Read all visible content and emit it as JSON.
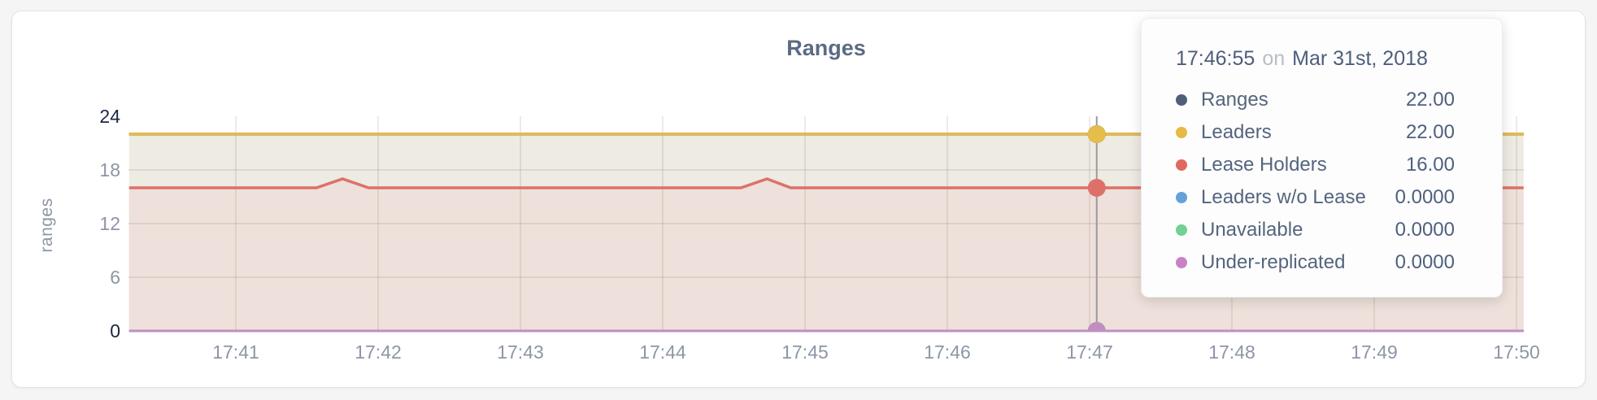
{
  "chart_data": {
    "type": "area",
    "title": "Ranges",
    "ylabel": "ranges",
    "ylim": [
      0,
      24
    ],
    "grid": true,
    "t_start": "17:40:15",
    "t_end": "17:50:03",
    "x_ticks": [
      {
        "label": "17:41",
        "time": "17:41:00"
      },
      {
        "label": "17:42",
        "time": "17:42:00"
      },
      {
        "label": "17:43",
        "time": "17:43:00"
      },
      {
        "label": "17:44",
        "time": "17:44:00"
      },
      {
        "label": "17:45",
        "time": "17:45:00"
      },
      {
        "label": "17:46",
        "time": "17:46:00"
      },
      {
        "label": "17:47",
        "time": "17:47:00"
      },
      {
        "label": "17:48",
        "time": "17:48:00"
      },
      {
        "label": "17:49",
        "time": "17:49:00"
      },
      {
        "label": "17:50",
        "time": "17:50:00"
      }
    ],
    "y_ticks": [
      {
        "label": "0",
        "value": 0,
        "emphasis": true,
        "grid": false
      },
      {
        "label": "6",
        "value": 6,
        "emphasis": false,
        "grid": true
      },
      {
        "label": "12",
        "value": 12,
        "emphasis": false,
        "grid": true
      },
      {
        "label": "18",
        "value": 18,
        "emphasis": false,
        "grid": true
      },
      {
        "label": "24",
        "value": 24,
        "emphasis": true,
        "grid": false
      }
    ],
    "series": [
      {
        "id": "ranges",
        "name": "Ranges",
        "color": "#4f5e7b",
        "width": 3.5,
        "points": [
          [
            "17:40:15",
            22
          ],
          [
            "17:50:03",
            22
          ]
        ]
      },
      {
        "id": "leaders",
        "name": "Leaders",
        "color": "#e6bc4b",
        "fill": "#edebe2",
        "width": 3.5,
        "points": [
          [
            "17:40:15",
            22
          ],
          [
            "17:50:03",
            22
          ]
        ]
      },
      {
        "id": "lease-holders",
        "name": "Lease Holders",
        "color": "#dd7169",
        "fill": "#eee0da",
        "width": 3.5,
        "points": [
          [
            "17:40:15",
            16
          ],
          [
            "17:41:34",
            16
          ],
          [
            "17:41:45",
            17
          ],
          [
            "17:41:56",
            16
          ],
          [
            "17:44:33",
            16
          ],
          [
            "17:44:44",
            17
          ],
          [
            "17:44:54",
            16
          ],
          [
            "17:50:03",
            16
          ]
        ]
      },
      {
        "id": "leaders-wo-lease",
        "name": "Leaders w/o Lease",
        "color": "#64a1da",
        "width": 3,
        "points": [
          [
            "17:40:15",
            0
          ],
          [
            "17:50:03",
            0
          ]
        ]
      },
      {
        "id": "unavailable",
        "name": "Unavailable",
        "color": "#72d093",
        "width": 3,
        "points": [
          [
            "17:40:15",
            0
          ],
          [
            "17:50:03",
            0
          ]
        ]
      },
      {
        "id": "under-replicated",
        "name": "Under-replicated",
        "color": "#c08fc2",
        "width": 3,
        "points": [
          [
            "17:40:15",
            0
          ],
          [
            "17:50:03",
            0
          ]
        ]
      }
    ],
    "hover": {
      "guideline_time": "17:47:03",
      "values": [
        22,
        22,
        16,
        0,
        0,
        0
      ]
    }
  },
  "tooltip": {
    "time": "17:46:55",
    "on_word": "on",
    "date": "Mar 31st, 2018",
    "rows": [
      {
        "label": "Ranges",
        "value": "22.00",
        "color": "#4f5e7b"
      },
      {
        "label": "Leaders",
        "value": "22.00",
        "color": "#e8b945"
      },
      {
        "label": "Lease Holders",
        "value": "16.00",
        "color": "#e0695f"
      },
      {
        "label": "Leaders w/o Lease",
        "value": "0.0000",
        "color": "#64a1da"
      },
      {
        "label": "Unavailable",
        "value": "0.0000",
        "color": "#72d093"
      },
      {
        "label": "Under-replicated",
        "value": "0.0000",
        "color": "#c983c5"
      }
    ]
  }
}
